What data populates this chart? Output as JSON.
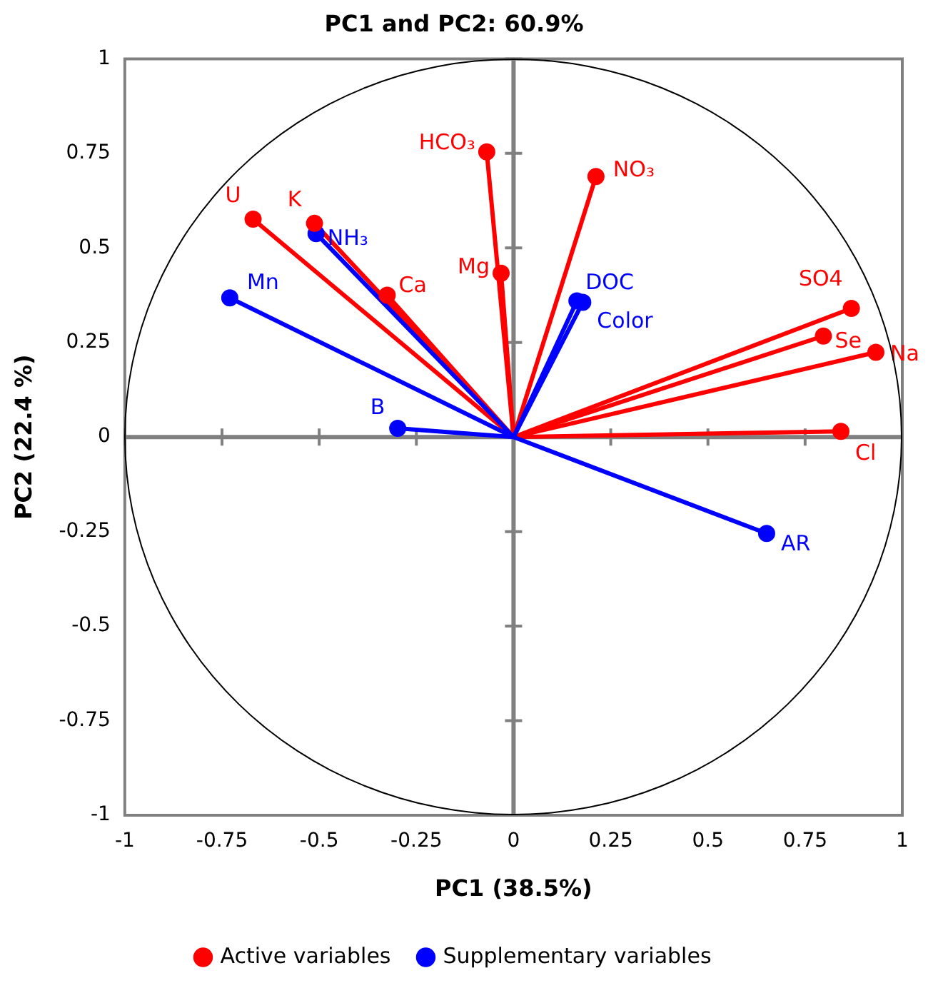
{
  "chart_data": {
    "type": "scatter",
    "title": "PC1 and PC2: 60.9%",
    "xlabel": "PC1 (38.5%)",
    "ylabel": "PC2 (22.4 %)",
    "xlim": [
      -1,
      1
    ],
    "ylim": [
      -1,
      1
    ],
    "xticks": [
      -1,
      -0.75,
      -0.5,
      -0.25,
      0,
      0.25,
      0.5,
      0.75,
      1
    ],
    "yticks": [
      -1,
      -0.75,
      -0.5,
      -0.25,
      0,
      0.25,
      0.5,
      0.75,
      1
    ],
    "legend": "bottom",
    "marker": "circle",
    "series": [
      {
        "name": "Active variables",
        "color": "#ff0000",
        "x": [
          -0.67,
          -0.512,
          -0.325,
          -0.069,
          -0.032,
          0.212,
          0.869,
          0.797,
          0.932,
          0.842
        ],
        "values": [
          0.576,
          0.565,
          0.375,
          0.754,
          0.433,
          0.689,
          0.34,
          0.267,
          0.224,
          0.015
        ]
      },
      {
        "name": "Supplementary variables",
        "color": "#0000ff",
        "x": [
          -0.73,
          -0.508,
          -0.298,
          0.163,
          0.178,
          0.651
        ],
        "values": [
          0.368,
          0.538,
          0.023,
          0.36,
          0.356,
          -0.255
        ]
      }
    ],
    "annotations": [
      {
        "text": "U",
        "x": -0.67,
        "y": 0.576
      },
      {
        "text": "K",
        "x": -0.512,
        "y": 0.565
      },
      {
        "text": "Ca",
        "x": -0.325,
        "y": 0.375
      },
      {
        "text": "HCO₃",
        "x": -0.069,
        "y": 0.754
      },
      {
        "text": "Mg",
        "x": -0.032,
        "y": 0.433
      },
      {
        "text": "NO₃",
        "x": 0.212,
        "y": 0.689
      },
      {
        "text": "SO4",
        "x": 0.869,
        "y": 0.34
      },
      {
        "text": "Se",
        "x": 0.797,
        "y": 0.267
      },
      {
        "text": "Na",
        "x": 0.932,
        "y": 0.224
      },
      {
        "text": "Cl",
        "x": 0.842,
        "y": 0.015
      },
      {
        "text": "Mn",
        "x": -0.73,
        "y": 0.368
      },
      {
        "text": "NH₃",
        "x": -0.508,
        "y": 0.538
      },
      {
        "text": "B",
        "x": -0.298,
        "y": 0.023
      },
      {
        "text": "DOC",
        "x": 0.163,
        "y": 0.36
      },
      {
        "text": "Color",
        "x": 0.178,
        "y": 0.356
      },
      {
        "text": "AR",
        "x": 0.651,
        "y": -0.255
      }
    ]
  }
}
